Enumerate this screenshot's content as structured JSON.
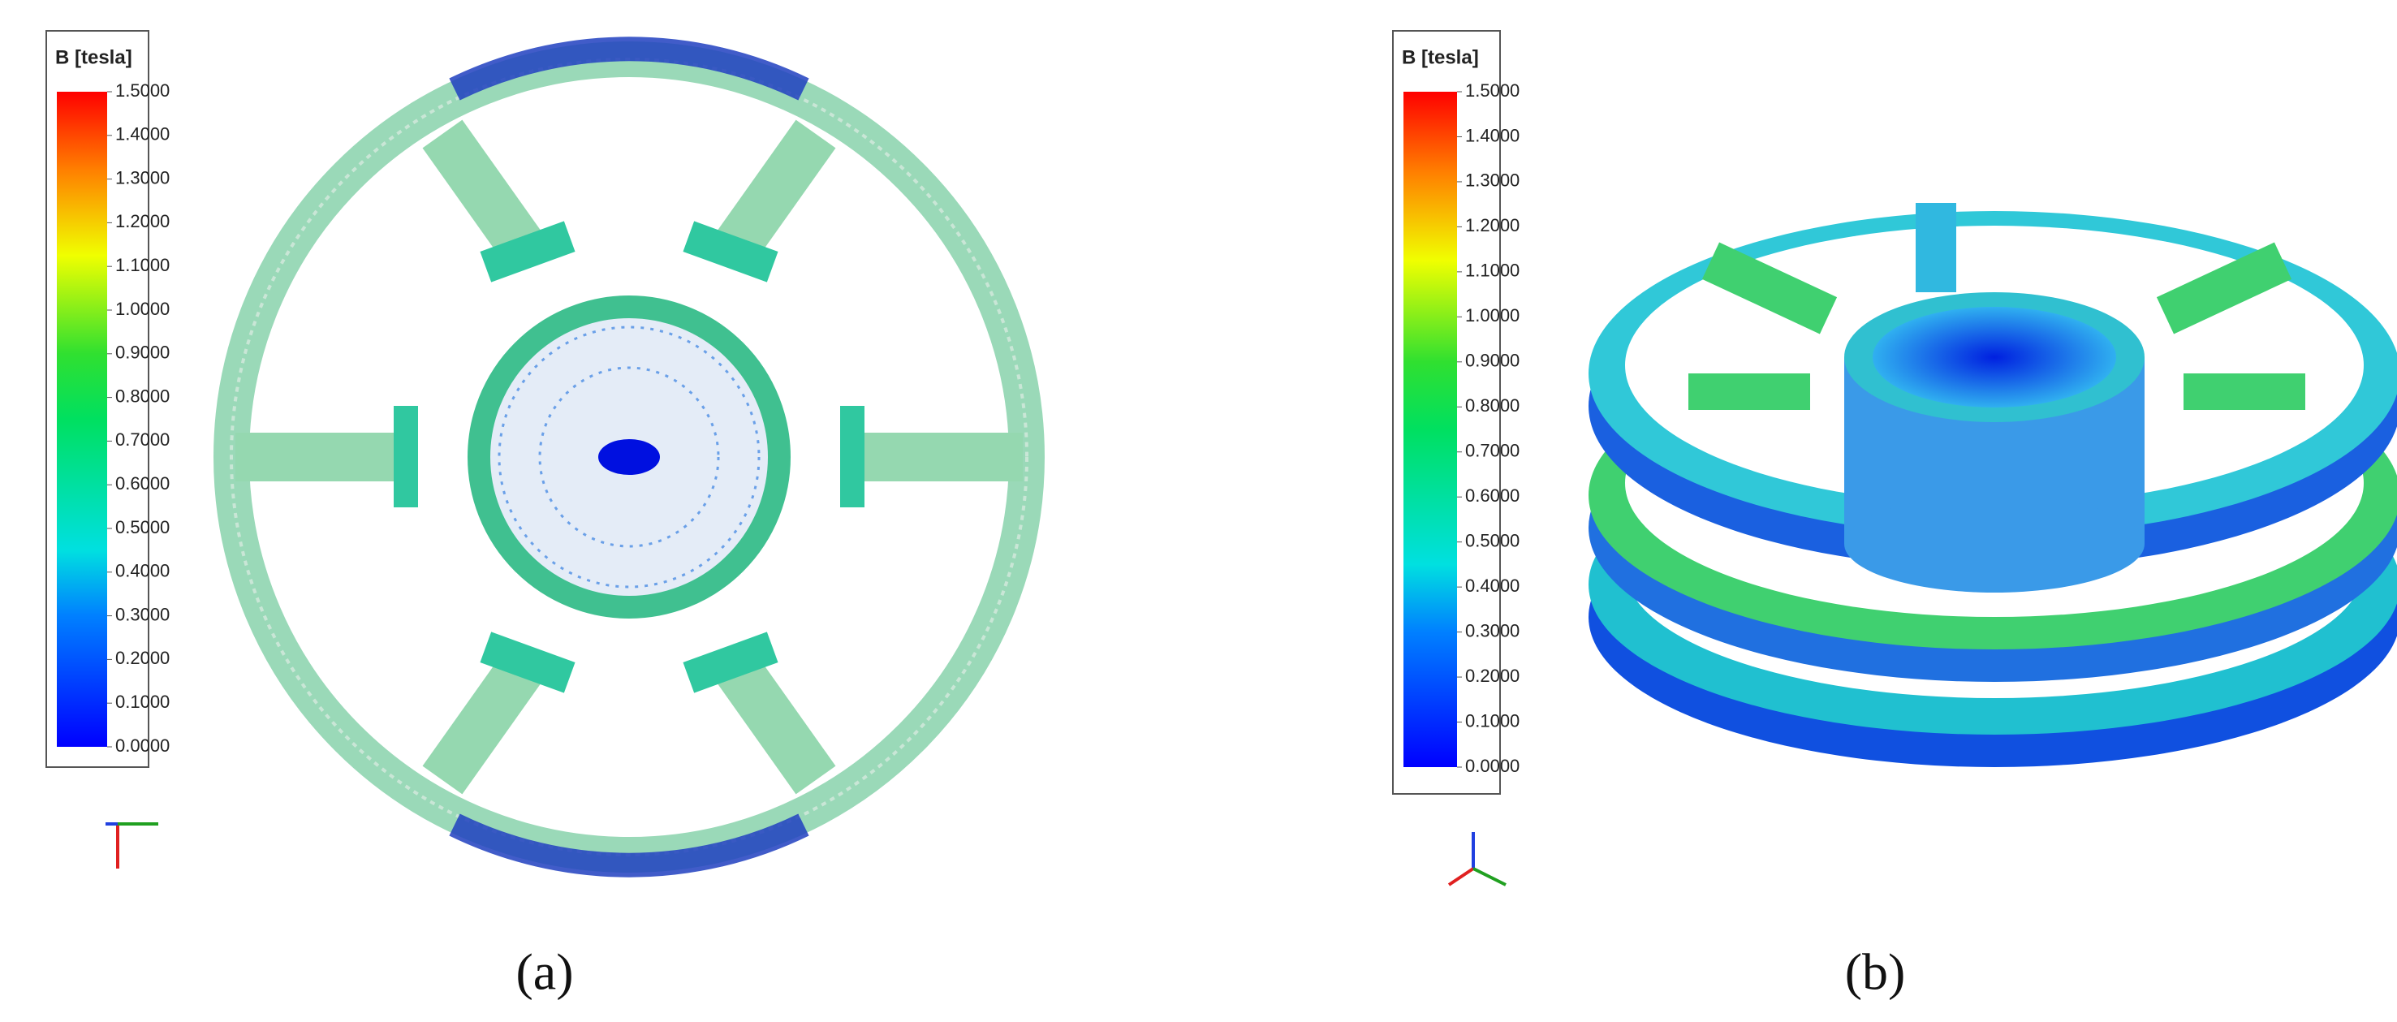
{
  "panels": [
    {
      "legend": {
        "title": "B [tesla]",
        "ticks": [
          {
            "value": 1.5,
            "label": "1.5000"
          },
          {
            "value": 1.4,
            "label": "1.4000"
          },
          {
            "value": 1.3,
            "label": "1.3000"
          },
          {
            "value": 1.2,
            "label": "1.2000"
          },
          {
            "value": 1.1,
            "label": "1.1000"
          },
          {
            "value": 1.0,
            "label": "1.0000"
          },
          {
            "value": 0.9,
            "label": "0.9000"
          },
          {
            "value": 0.8,
            "label": "0.8000"
          },
          {
            "value": 0.7,
            "label": "0.7000"
          },
          {
            "value": 0.6,
            "label": "0.6000"
          },
          {
            "value": 0.5,
            "label": "0.5000"
          },
          {
            "value": 0.4,
            "label": "0.4000"
          },
          {
            "value": 0.3,
            "label": "0.3000"
          },
          {
            "value": 0.2,
            "label": "0.2000"
          },
          {
            "value": 0.1,
            "label": "0.1000"
          },
          {
            "value": 0,
            "label": "0.0000"
          }
        ]
      },
      "caption": "(a)"
    },
    {
      "legend": {
        "title": "B [tesla]",
        "ticks": [
          {
            "value": 1.5,
            "label": "1.5000"
          },
          {
            "value": 1.4,
            "label": "1.4000"
          },
          {
            "value": 1.3,
            "label": "1.3000"
          },
          {
            "value": 1.2,
            "label": "1.2000"
          },
          {
            "value": 1.1,
            "label": "1.1000"
          },
          {
            "value": 1.0,
            "label": "1.0000"
          },
          {
            "value": 0.9,
            "label": "0.9000"
          },
          {
            "value": 0.8,
            "label": "0.8000"
          },
          {
            "value": 0.7,
            "label": "0.7000"
          },
          {
            "value": 0.6,
            "label": "0.6000"
          },
          {
            "value": 0.5,
            "label": "0.5000"
          },
          {
            "value": 0.4,
            "label": "0.4000"
          },
          {
            "value": 0.3,
            "label": "0.3000"
          },
          {
            "value": 0.2,
            "label": "0.2000"
          },
          {
            "value": 0.1,
            "label": "0.1000"
          },
          {
            "value": 0,
            "label": "0.0000"
          }
        ]
      },
      "caption": "(b)"
    }
  ]
}
